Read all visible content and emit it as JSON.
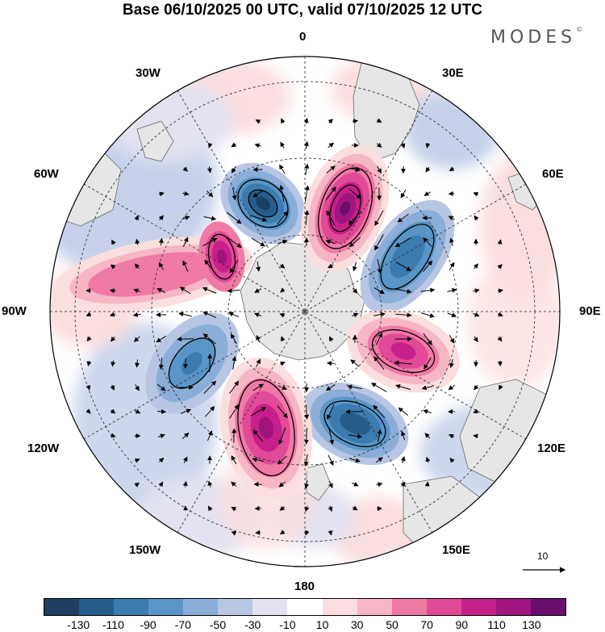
{
  "title": "Base 06/10/2025 00 UTC, valid 07/10/2025 12 UTC",
  "brand": "MODES",
  "brand_mark": "©",
  "longitude_labels": {
    "lon_0": "0",
    "lon_30e": "30E",
    "lon_60e": "60E",
    "lon_90e": "90E",
    "lon_120e": "120E",
    "lon_150e": "150E",
    "lon_180": "180",
    "lon_150w": "150W",
    "lon_120w": "120W",
    "lon_90w": "90W",
    "lon_60w": "60W",
    "lon_30w": "30W"
  },
  "reference_vector": {
    "label": "10"
  },
  "colorbar": {
    "colors": [
      "#1c3f63",
      "#275d8a",
      "#3c7bb0",
      "#5a95c7",
      "#8aaed8",
      "#b8c6e4",
      "#e2e2f1",
      "#ffffff",
      "#fbdede",
      "#f7b6c3",
      "#f07aa6",
      "#e14a97",
      "#c8208a",
      "#a0157d",
      "#6b0f6e"
    ],
    "ticks": [
      "-130",
      "-110",
      "-90",
      "-70",
      "-50",
      "-30",
      "-10",
      "10",
      "30",
      "50",
      "70",
      "90",
      "110",
      "130"
    ]
  },
  "anomaly_centres": [
    {
      "name": "neg-30w-60w",
      "sign": "negative",
      "peak": -120
    },
    {
      "name": "pos-0-30e",
      "sign": "positive",
      "peak": 120
    },
    {
      "name": "neg-30e-60e",
      "sign": "negative",
      "peak": -80
    },
    {
      "name": "pos-90e-120e",
      "sign": "positive",
      "peak": 90
    },
    {
      "name": "neg-150e-180",
      "sign": "negative",
      "peak": -100
    },
    {
      "name": "pos-180-150w",
      "sign": "positive",
      "peak": 110
    },
    {
      "name": "neg-120w-90w",
      "sign": "negative",
      "peak": -70
    },
    {
      "name": "pos-90w-60w",
      "sign": "positive",
      "peak": 90
    }
  ]
}
